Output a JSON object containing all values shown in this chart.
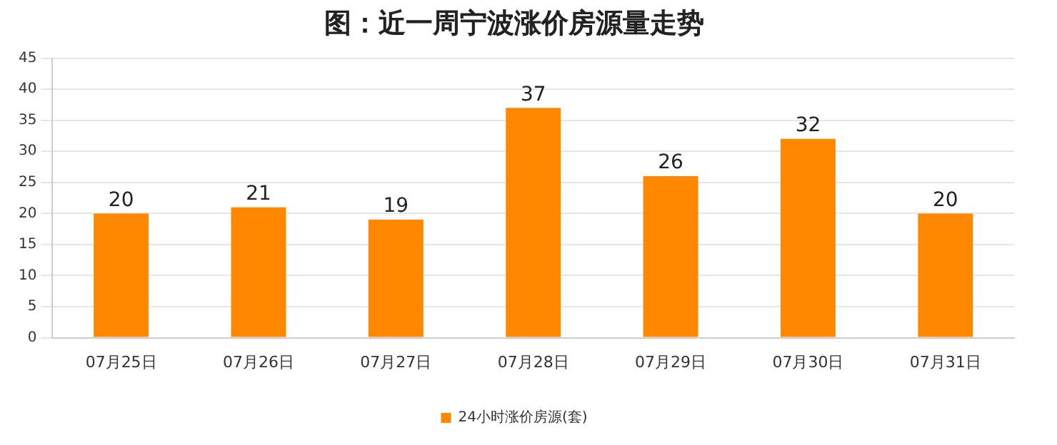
{
  "chart_data": {
    "type": "bar",
    "title": "图：近一周宁波涨价房源量走势",
    "categories": [
      "07月25日",
      "07月26日",
      "07月27日",
      "07月28日",
      "07月29日",
      "07月30日",
      "07月31日"
    ],
    "series": [
      {
        "name": "24小时涨价房源(套)",
        "color": "#ff8800",
        "values": [
          20,
          21,
          19,
          37,
          26,
          32,
          20
        ]
      }
    ],
    "ylim": [
      0,
      45
    ],
    "yticks": [
      0,
      5,
      10,
      15,
      20,
      25,
      30,
      35,
      40,
      45
    ],
    "grid": "y",
    "legend": "bottom",
    "data_labels": true
  }
}
